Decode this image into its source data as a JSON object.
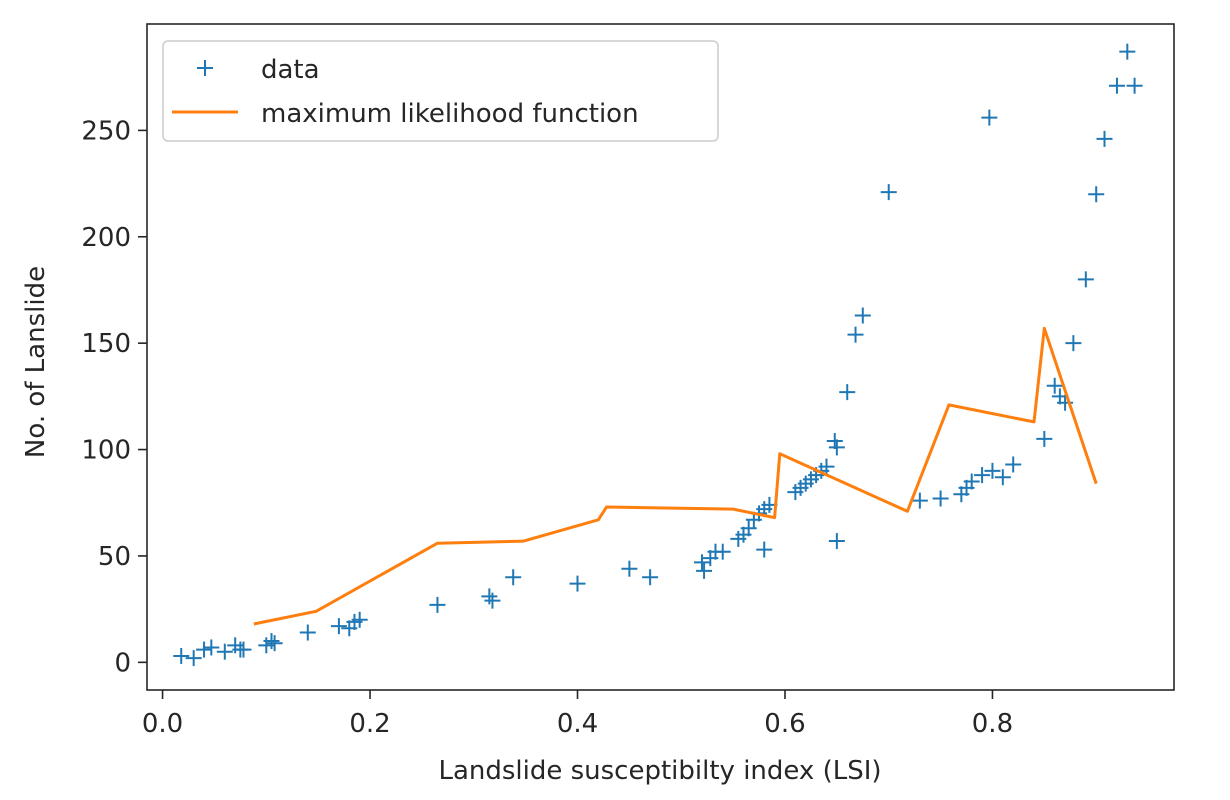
{
  "chart_data": {
    "type": "scatter",
    "title": "",
    "xlabel": "Landslide susceptibilty index (LSI)",
    "ylabel": "No. of Lanslide",
    "xlim": [
      -0.015,
      0.975
    ],
    "ylim": [
      -13,
      300
    ],
    "xticks": [
      0.0,
      0.2,
      0.4,
      0.6,
      0.8
    ],
    "xtick_labels": [
      "0.0",
      "0.2",
      "0.4",
      "0.6",
      "0.8"
    ],
    "yticks": [
      0,
      50,
      100,
      150,
      200,
      250
    ],
    "ytick_labels": [
      "0",
      "50",
      "100",
      "150",
      "200",
      "250"
    ],
    "grid": false,
    "legend_position": "top-left",
    "colors": {
      "data": "#1f77b4",
      "fit": "#ff7f0e"
    },
    "series": [
      {
        "name": "data",
        "kind": "marker-plus",
        "color": "#1f77b4",
        "points": [
          [
            0.018,
            3
          ],
          [
            0.03,
            2
          ],
          [
            0.04,
            6
          ],
          [
            0.047,
            7
          ],
          [
            0.06,
            5
          ],
          [
            0.07,
            8
          ],
          [
            0.075,
            6
          ],
          [
            0.078,
            6
          ],
          [
            0.1,
            8
          ],
          [
            0.105,
            10
          ],
          [
            0.108,
            9
          ],
          [
            0.14,
            14
          ],
          [
            0.17,
            17
          ],
          [
            0.18,
            16
          ],
          [
            0.185,
            19
          ],
          [
            0.19,
            20
          ],
          [
            0.265,
            27
          ],
          [
            0.315,
            31
          ],
          [
            0.318,
            29
          ],
          [
            0.338,
            40
          ],
          [
            0.4,
            37
          ],
          [
            0.45,
            44
          ],
          [
            0.47,
            40
          ],
          [
            0.52,
            47
          ],
          [
            0.522,
            43
          ],
          [
            0.528,
            49
          ],
          [
            0.533,
            52
          ],
          [
            0.54,
            52
          ],
          [
            0.555,
            58
          ],
          [
            0.56,
            60
          ],
          [
            0.565,
            63
          ],
          [
            0.57,
            67
          ],
          [
            0.575,
            70
          ],
          [
            0.58,
            72
          ],
          [
            0.585,
            74
          ],
          [
            0.58,
            53
          ],
          [
            0.61,
            80
          ],
          [
            0.615,
            82
          ],
          [
            0.62,
            84
          ],
          [
            0.625,
            86
          ],
          [
            0.63,
            88
          ],
          [
            0.635,
            90
          ],
          [
            0.64,
            92
          ],
          [
            0.648,
            104
          ],
          [
            0.65,
            101
          ],
          [
            0.65,
            57
          ],
          [
            0.66,
            127
          ],
          [
            0.668,
            154
          ],
          [
            0.675,
            163
          ],
          [
            0.7,
            221
          ],
          [
            0.73,
            76
          ],
          [
            0.75,
            77
          ],
          [
            0.77,
            79
          ],
          [
            0.775,
            82
          ],
          [
            0.78,
            85
          ],
          [
            0.79,
            88
          ],
          [
            0.797,
            256
          ],
          [
            0.8,
            90
          ],
          [
            0.81,
            87
          ],
          [
            0.82,
            93
          ],
          [
            0.85,
            105
          ],
          [
            0.86,
            130
          ],
          [
            0.865,
            125
          ],
          [
            0.87,
            122
          ],
          [
            0.878,
            150
          ],
          [
            0.89,
            180
          ],
          [
            0.9,
            220
          ],
          [
            0.908,
            246
          ],
          [
            0.92,
            271
          ],
          [
            0.93,
            287
          ],
          [
            0.937,
            271
          ]
        ]
      },
      {
        "name": "maximum likelihood function",
        "kind": "line",
        "color": "#ff7f0e",
        "points": [
          [
            0.088,
            18
          ],
          [
            0.148,
            24
          ],
          [
            0.265,
            56
          ],
          [
            0.348,
            57
          ],
          [
            0.42,
            67
          ],
          [
            0.428,
            73
          ],
          [
            0.55,
            72
          ],
          [
            0.59,
            68
          ],
          [
            0.595,
            98
          ],
          [
            0.718,
            71
          ],
          [
            0.758,
            121
          ],
          [
            0.84,
            113
          ],
          [
            0.85,
            157
          ],
          [
            0.9,
            84
          ]
        ]
      }
    ]
  }
}
